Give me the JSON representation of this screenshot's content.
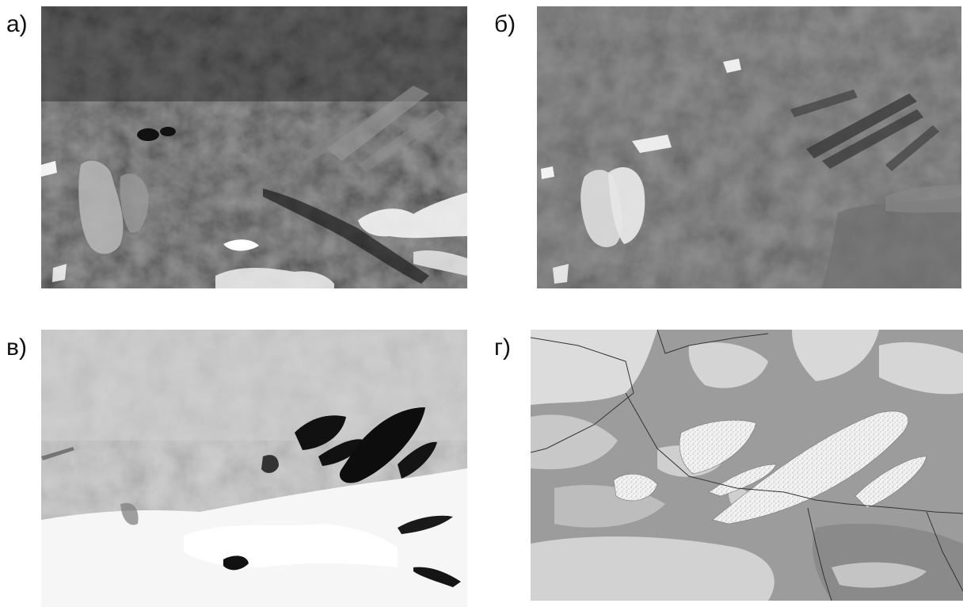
{
  "figure": {
    "panels": [
      {
        "id": "a",
        "label": "а)",
        "kind": "satellite-visible"
      },
      {
        "id": "b",
        "label": "б)",
        "kind": "satellite-gray"
      },
      {
        "id": "v",
        "label": "в)",
        "kind": "satellite-inverted"
      },
      {
        "id": "g",
        "label": "г)",
        "kind": "classification-map"
      }
    ]
  }
}
